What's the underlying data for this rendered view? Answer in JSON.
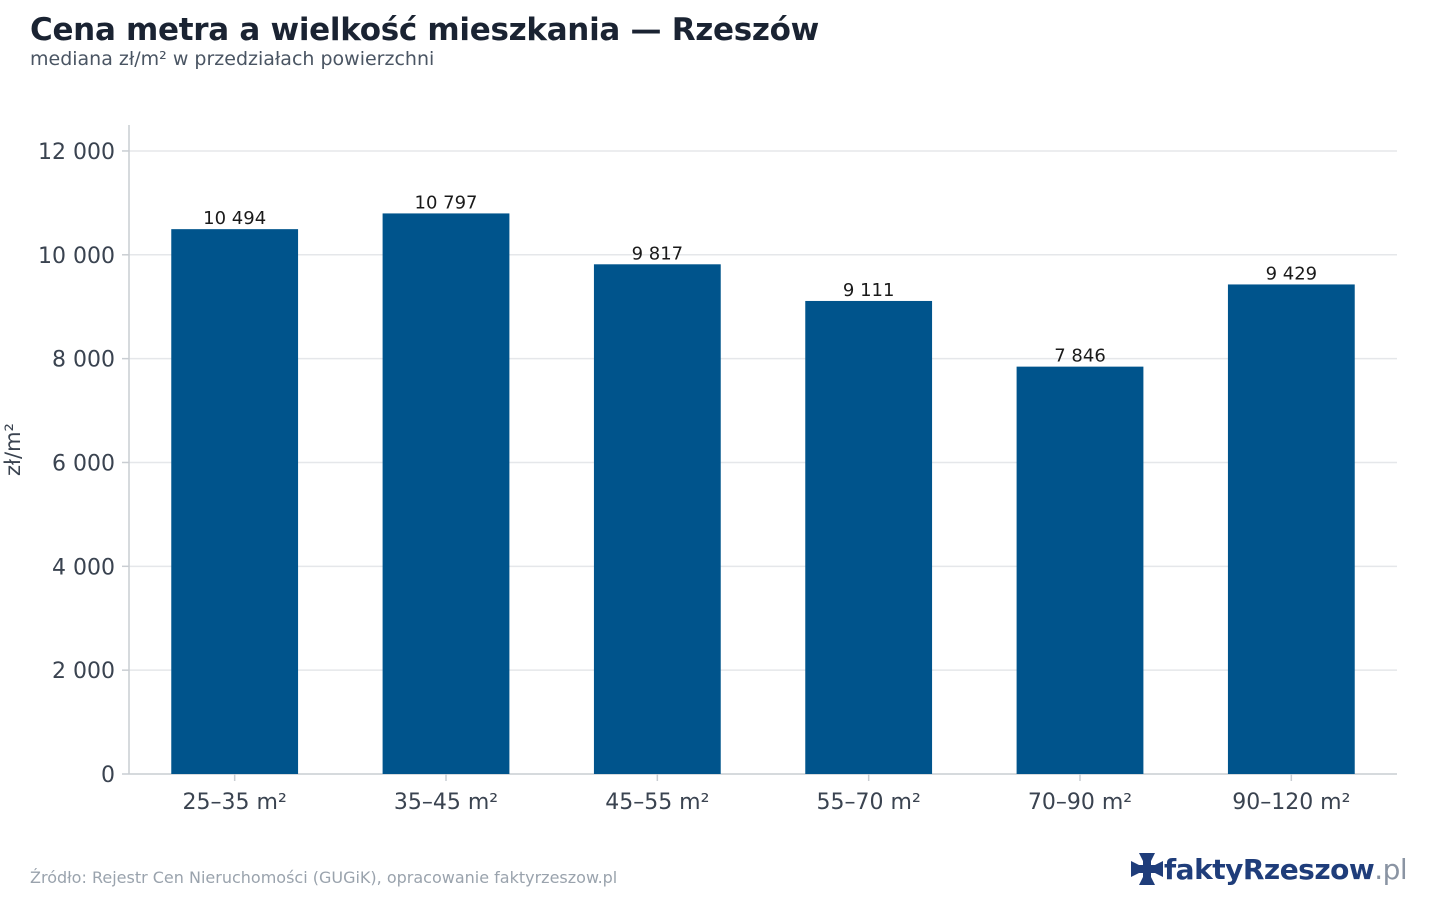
{
  "header": {
    "title": "Cena metra a wielkość mieszkania — Rzeszów",
    "subtitle": "mediana zł/m² w przedziałach powierzchni"
  },
  "footer": {
    "source": "Źródło: Rejestr Cen Nieruchomości (GUGiK), opracowanie faktyrzeszow.pl",
    "logo_brand": "faktyRzeszow",
    "logo_tld": ".pl"
  },
  "colors": {
    "bar": "#00548c",
    "grid": "#e5e7ea",
    "axis": "#c9cdd2",
    "text": "#3a4350",
    "logo": "#1f3d7a"
  },
  "chart_data": {
    "type": "bar",
    "categories": [
      "25–35 m²",
      "35–45 m²",
      "45–55 m²",
      "55–70 m²",
      "70–90 m²",
      "90–120 m²"
    ],
    "values": [
      10494,
      10797,
      9817,
      9111,
      7846,
      9429
    ],
    "value_labels": [
      "10 494",
      "10 797",
      "9 817",
      "9 111",
      "7 846",
      "9 429"
    ],
    "ylabel": "zł/m²",
    "ylim": [
      0,
      12500
    ],
    "yticks": [
      0,
      2000,
      4000,
      6000,
      8000,
      10000,
      12000
    ],
    "ytick_labels": [
      "0",
      "2 000",
      "4 000",
      "6 000",
      "8 000",
      "10 000",
      "12 000"
    ],
    "grid": true,
    "legend": "none"
  }
}
